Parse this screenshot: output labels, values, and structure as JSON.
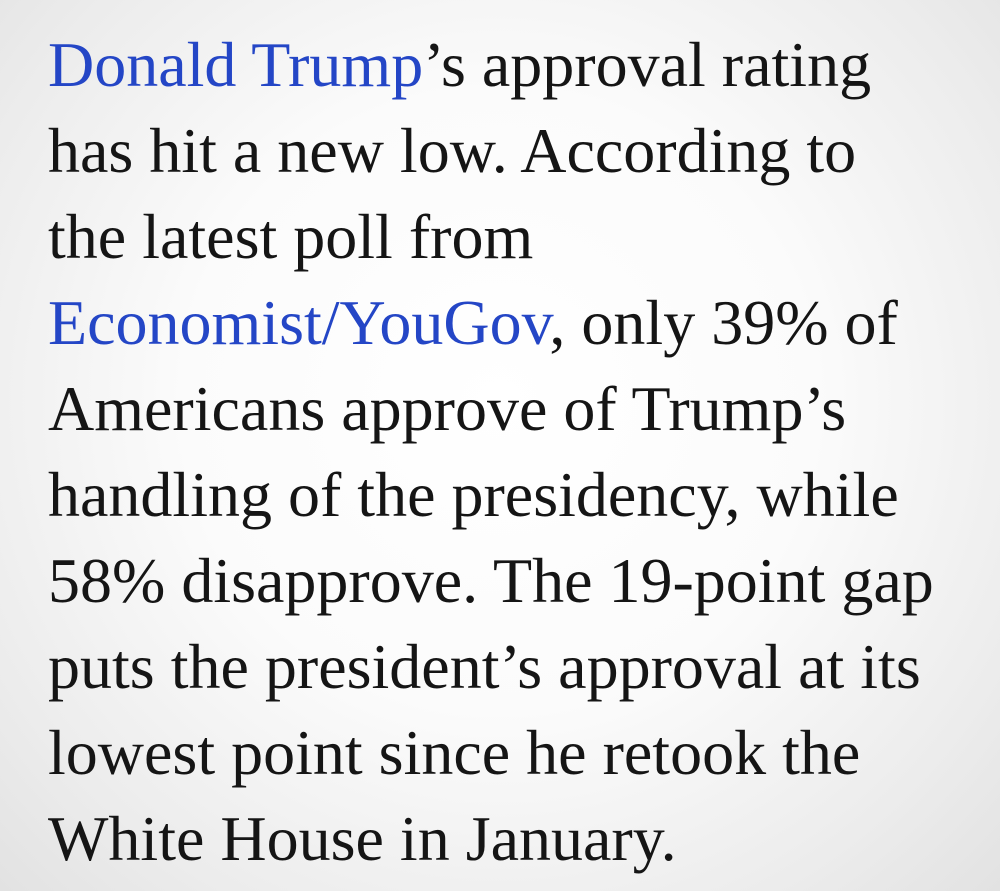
{
  "article": {
    "link_trump": "Donald Trump",
    "line1_rest": "’s approval rating",
    "line2": "has hit a new low. According to",
    "line3": "the latest poll from",
    "link_poll": "Economist/YouGov",
    "line4_rest": ", only 39% of",
    "line5": "Americans approve of Trump’s",
    "line6": "handling of the presidency, while",
    "line7": "58% disapprove. The 19-point gap",
    "line8": "puts the president’s approval at its",
    "line9": "lowest point since he retook the",
    "line10": "White House in January."
  },
  "colors": {
    "link": "#2446c6",
    "text": "#151515"
  }
}
